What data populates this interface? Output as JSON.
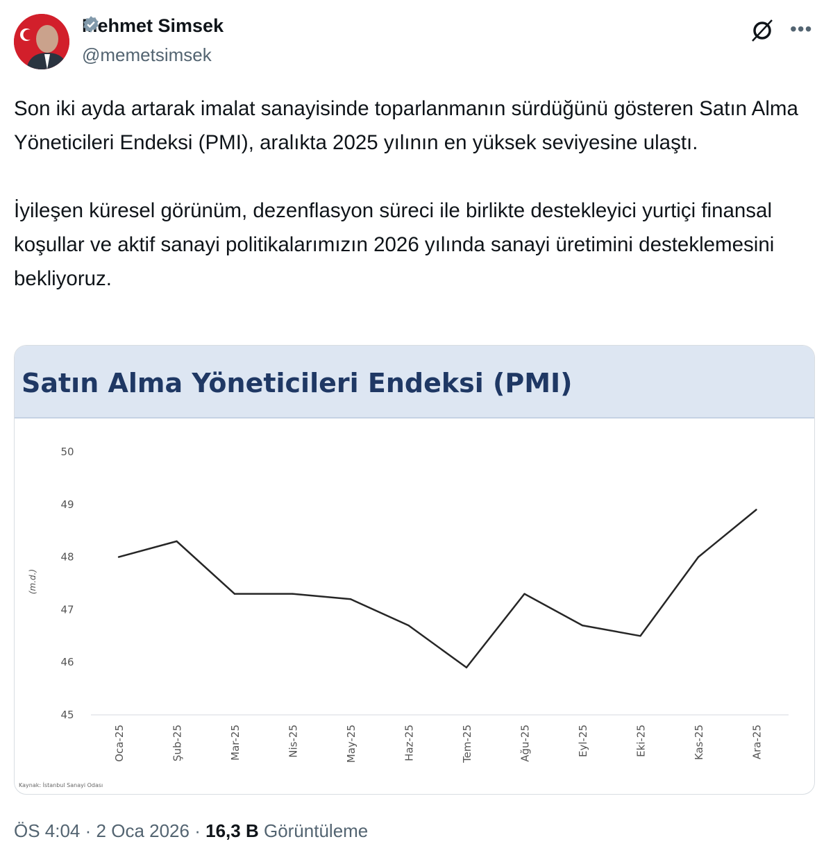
{
  "author": {
    "name": "Mehmet Simsek",
    "handle": "@memetsimsek",
    "verified": true
  },
  "icons": {
    "verified": "verified-badge-icon",
    "grok": "grok-icon",
    "more": "more-options-icon"
  },
  "tweet": {
    "paragraphs": [
      "Son iki ayda artarak imalat sanayisinde toparlanmanın sürdüğünü gösteren Satın Alma Yöneticileri Endeksi (PMI), aralıkta 2025 yılının en yüksek seviyesine ulaştı.",
      "İyileşen küresel görünüm, dezenflasyon süreci ile birlikte destekleyici yurtiçi finansal koşullar ve aktif sanayi politikalarımızın 2026 yılında sanayi üretimini desteklemesini bekliyoruz."
    ]
  },
  "chart_data": {
    "type": "line",
    "title": "Satın Alma Yöneticileri Endeksi (PMI)",
    "ylabel": "(m.d.)",
    "xlabel": "",
    "categories": [
      "Oca-25",
      "Şub-25",
      "Mar-25",
      "Nis-25",
      "May-25",
      "Haz-25",
      "Tem-25",
      "Ağu-25",
      "Eyl-25",
      "Eki-25",
      "Kas-25",
      "Ara-25"
    ],
    "values": [
      48.0,
      48.3,
      47.3,
      47.3,
      47.2,
      46.7,
      45.9,
      47.3,
      46.7,
      46.5,
      48.0,
      48.9
    ],
    "ylim": [
      45,
      50
    ],
    "yticks": [
      45,
      46,
      47,
      48,
      49,
      50
    ],
    "grid": false,
    "source": "Kaynak: İstanbul Sanayi Odası",
    "colors": {
      "line": "#262626",
      "header_bg": "#dde6f2",
      "title": "#1f3864"
    }
  },
  "footer": {
    "time": "ÖS 4:04",
    "date": "2 Oca 2026",
    "views": "16,3 B",
    "views_label": "Görüntüleme",
    "separator": "·"
  }
}
